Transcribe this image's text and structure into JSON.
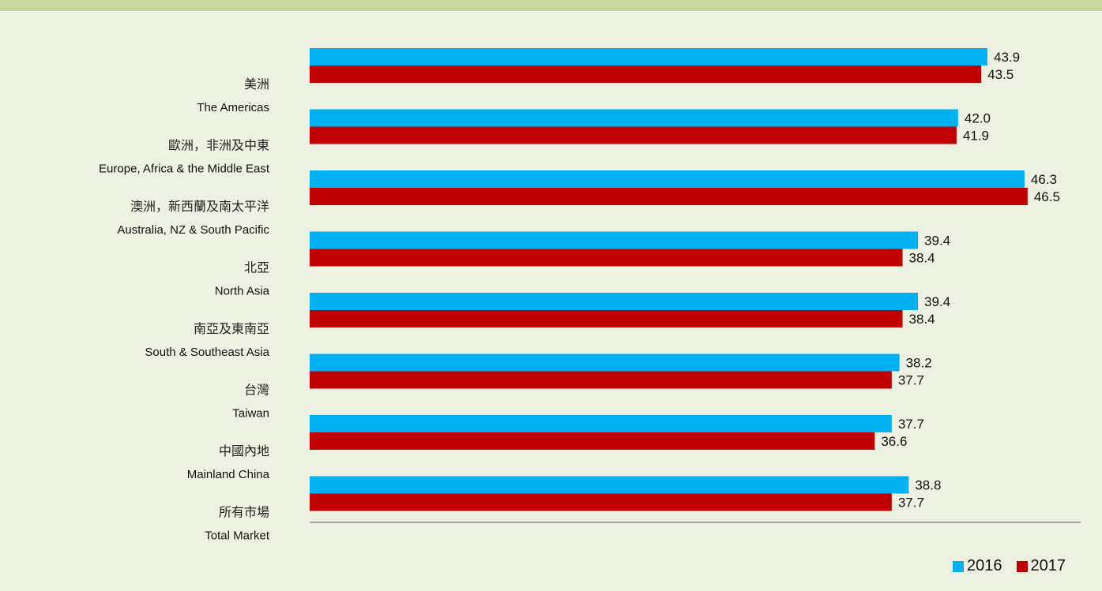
{
  "chart_data": {
    "type": "bar",
    "orientation": "horizontal",
    "categories": [
      {
        "zh": "美洲",
        "en": "The Americas"
      },
      {
        "zh": "歐洲，非洲及中東",
        "en": "Europe, Africa & the Middle East"
      },
      {
        "zh": "澳洲，新西蘭及南太平洋",
        "en": "Australia, NZ & South Pacific"
      },
      {
        "zh": "北亞",
        "en": "North Asia"
      },
      {
        "zh": "南亞及東南亞",
        "en": "South & Southeast Asia"
      },
      {
        "zh": "台灣",
        "en": "Taiwan"
      },
      {
        "zh": "中國內地",
        "en": "Mainland China"
      },
      {
        "zh": "所有市場",
        "en": "Total Market"
      }
    ],
    "series": [
      {
        "name": "2016",
        "color": "#00B0F0",
        "values": [
          43.9,
          42.0,
          46.3,
          39.4,
          39.4,
          38.2,
          37.7,
          38.8
        ],
        "labels": [
          "43.9",
          "42.0",
          "46.3",
          "39.4",
          "39.4",
          "38.2",
          "37.7",
          "38.8"
        ]
      },
      {
        "name": "2017",
        "color": "#C00000",
        "values": [
          43.5,
          41.9,
          46.5,
          38.4,
          38.4,
          37.7,
          36.6,
          37.7
        ],
        "labels": [
          "43.5",
          "41.9",
          "46.5",
          "38.4",
          "38.4",
          "37.7",
          "36.6",
          "37.7"
        ]
      }
    ],
    "xlim": [
      0,
      47
    ],
    "legend_position": "bottom-right",
    "grid": false
  }
}
